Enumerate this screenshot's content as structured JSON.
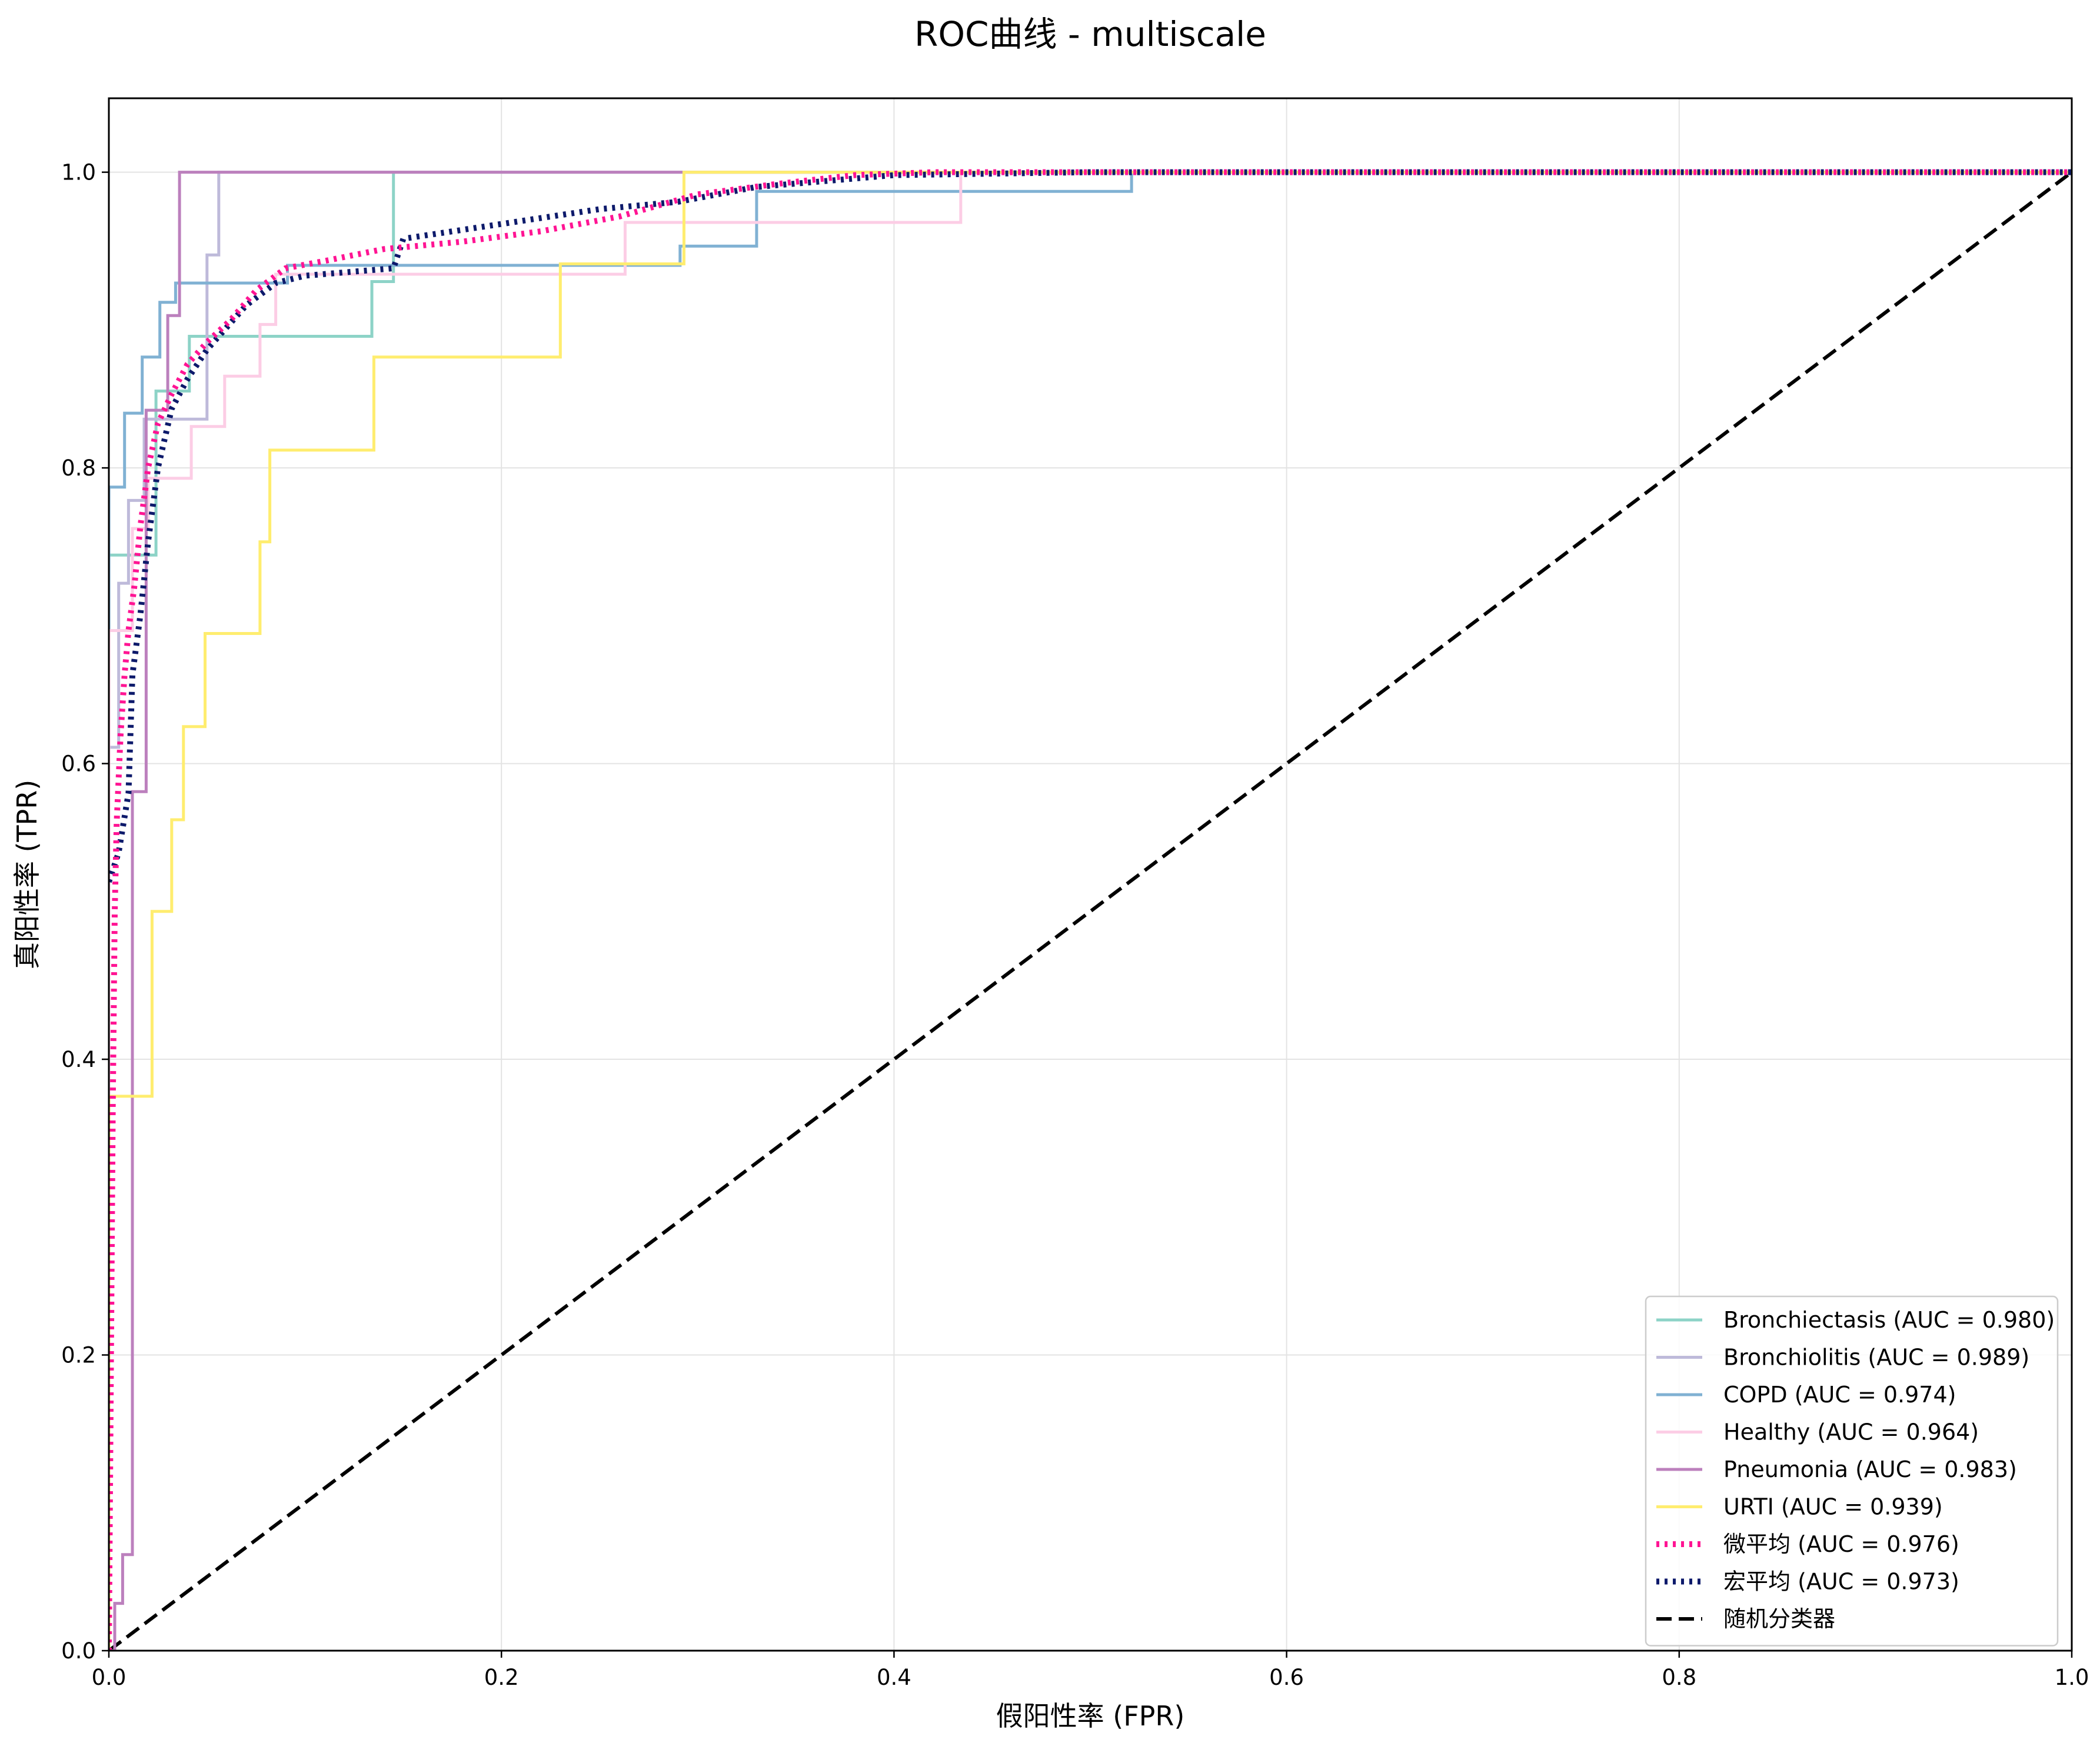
{
  "chart_data": {
    "type": "line",
    "title": "ROC曲线 - multiscale",
    "xlabel": "假阳性率 (FPR)",
    "ylabel": "真阳性率 (TPR)",
    "xlim": [
      0,
      1
    ],
    "ylim": [
      0,
      1.05
    ],
    "xticks": [
      "0.0",
      "0.2",
      "0.4",
      "0.6",
      "0.8",
      "1.0"
    ],
    "yticks": [
      "0.0",
      "0.2",
      "0.4",
      "0.6",
      "0.8",
      "1.0"
    ],
    "grid": true,
    "legend_position": "lower-right",
    "series": [
      {
        "name": "Bronchiectasis (AUC = 0.980)",
        "color": "#8dd3c7",
        "style": "solid",
        "points": [
          [
            0,
            0
          ],
          [
            0,
            0.741
          ],
          [
            0.024,
            0.741
          ],
          [
            0.024,
            0.852
          ],
          [
            0.041,
            0.852
          ],
          [
            0.041,
            0.889
          ],
          [
            0.134,
            0.889
          ],
          [
            0.134,
            0.926
          ],
          [
            0.145,
            0.926
          ],
          [
            0.145,
            1.0
          ],
          [
            1.0,
            1.0
          ]
        ]
      },
      {
        "name": "Bronchiolitis (AUC = 0.989)",
        "color": "#bebada",
        "style": "solid",
        "points": [
          [
            0,
            0
          ],
          [
            0,
            0.611
          ],
          [
            0.005,
            0.611
          ],
          [
            0.005,
            0.722
          ],
          [
            0.01,
            0.722
          ],
          [
            0.01,
            0.778
          ],
          [
            0.018,
            0.778
          ],
          [
            0.018,
            0.833
          ],
          [
            0.05,
            0.833
          ],
          [
            0.05,
            0.944
          ],
          [
            0.056,
            0.944
          ],
          [
            0.056,
            1.0
          ],
          [
            1.0,
            1.0
          ]
        ]
      },
      {
        "name": "COPD (AUC = 0.974)",
        "color": "#80b1d3",
        "style": "solid",
        "points": [
          [
            0,
            0
          ],
          [
            0,
            0.787
          ],
          [
            0.008,
            0.787
          ],
          [
            0.008,
            0.837
          ],
          [
            0.017,
            0.837
          ],
          [
            0.017,
            0.875
          ],
          [
            0.026,
            0.875
          ],
          [
            0.026,
            0.912
          ],
          [
            0.034,
            0.912
          ],
          [
            0.034,
            0.925
          ],
          [
            0.091,
            0.925
          ],
          [
            0.091,
            0.937
          ],
          [
            0.291,
            0.937
          ],
          [
            0.291,
            0.95
          ],
          [
            0.33,
            0.95
          ],
          [
            0.33,
            0.987
          ],
          [
            0.521,
            0.987
          ],
          [
            0.521,
            1.0
          ],
          [
            1.0,
            1.0
          ]
        ]
      },
      {
        "name": "Healthy (AUC = 0.964)",
        "color": "#fccde5",
        "style": "solid",
        "points": [
          [
            0,
            0
          ],
          [
            0,
            0.69
          ],
          [
            0.012,
            0.69
          ],
          [
            0.012,
            0.759
          ],
          [
            0.02,
            0.759
          ],
          [
            0.02,
            0.793
          ],
          [
            0.042,
            0.793
          ],
          [
            0.042,
            0.828
          ],
          [
            0.059,
            0.828
          ],
          [
            0.059,
            0.862
          ],
          [
            0.077,
            0.862
          ],
          [
            0.077,
            0.897
          ],
          [
            0.085,
            0.897
          ],
          [
            0.085,
            0.931
          ],
          [
            0.263,
            0.931
          ],
          [
            0.263,
            0.966
          ],
          [
            0.434,
            0.966
          ],
          [
            0.434,
            1.0
          ],
          [
            1.0,
            1.0
          ]
        ]
      },
      {
        "name": "Pneumonia (AUC = 0.983)",
        "color": "#bc80bd",
        "style": "solid",
        "points": [
          [
            0,
            0
          ],
          [
            0.003,
            0
          ],
          [
            0.003,
            0.032
          ],
          [
            0.007,
            0.032
          ],
          [
            0.007,
            0.065
          ],
          [
            0.012,
            0.065
          ],
          [
            0.012,
            0.581
          ],
          [
            0.019,
            0.581
          ],
          [
            0.019,
            0.839
          ],
          [
            0.03,
            0.839
          ],
          [
            0.03,
            0.903
          ],
          [
            0.036,
            0.903
          ],
          [
            0.036,
            1.0
          ],
          [
            1.0,
            1.0
          ]
        ]
      },
      {
        "name": "URTI (AUC = 0.939)",
        "color": "#ffed6f",
        "style": "solid",
        "points": [
          [
            0,
            0
          ],
          [
            0,
            0.375
          ],
          [
            0.022,
            0.375
          ],
          [
            0.022,
            0.5
          ],
          [
            0.032,
            0.5
          ],
          [
            0.032,
            0.562
          ],
          [
            0.038,
            0.562
          ],
          [
            0.038,
            0.625
          ],
          [
            0.049,
            0.625
          ],
          [
            0.049,
            0.688
          ],
          [
            0.077,
            0.688
          ],
          [
            0.077,
            0.75
          ],
          [
            0.082,
            0.75
          ],
          [
            0.082,
            0.812
          ],
          [
            0.135,
            0.812
          ],
          [
            0.135,
            0.875
          ],
          [
            0.23,
            0.875
          ],
          [
            0.23,
            0.938
          ],
          [
            0.293,
            0.938
          ],
          [
            0.293,
            1.0
          ],
          [
            1.0,
            1.0
          ]
        ]
      },
      {
        "name": "微平均 (AUC = 0.976)",
        "color": "#ff1493",
        "style": "dotted",
        "points": [
          [
            0,
            0
          ],
          [
            0.002,
            0.37
          ],
          [
            0.003,
            0.5
          ],
          [
            0.004,
            0.56
          ],
          [
            0.006,
            0.62
          ],
          [
            0.008,
            0.66
          ],
          [
            0.01,
            0.69
          ],
          [
            0.013,
            0.72
          ],
          [
            0.016,
            0.76
          ],
          [
            0.02,
            0.8
          ],
          [
            0.025,
            0.83
          ],
          [
            0.032,
            0.85
          ],
          [
            0.04,
            0.87
          ],
          [
            0.05,
            0.885
          ],
          [
            0.062,
            0.9
          ],
          [
            0.075,
            0.92
          ],
          [
            0.09,
            0.935
          ],
          [
            0.11,
            0.94
          ],
          [
            0.14,
            0.948
          ],
          [
            0.18,
            0.953
          ],
          [
            0.22,
            0.96
          ],
          [
            0.26,
            0.97
          ],
          [
            0.3,
            0.985
          ],
          [
            0.34,
            0.992
          ],
          [
            0.38,
            0.998
          ],
          [
            0.42,
            1.0
          ],
          [
            1.0,
            1.0
          ]
        ]
      },
      {
        "name": "宏平均 (AUC = 0.973)",
        "color": "#0d1a6b",
        "style": "dotted",
        "points": [
          [
            0,
            0.52
          ],
          [
            0.005,
            0.54
          ],
          [
            0.01,
            0.58
          ],
          [
            0.012,
            0.66
          ],
          [
            0.016,
            0.7
          ],
          [
            0.02,
            0.75
          ],
          [
            0.025,
            0.8
          ],
          [
            0.032,
            0.84
          ],
          [
            0.04,
            0.86
          ],
          [
            0.05,
            0.88
          ],
          [
            0.06,
            0.895
          ],
          [
            0.07,
            0.91
          ],
          [
            0.085,
            0.925
          ],
          [
            0.1,
            0.93
          ],
          [
            0.145,
            0.935
          ],
          [
            0.15,
            0.955
          ],
          [
            0.2,
            0.965
          ],
          [
            0.25,
            0.975
          ],
          [
            0.29,
            0.98
          ],
          [
            0.33,
            0.99
          ],
          [
            0.4,
            0.998
          ],
          [
            0.5,
            1.0
          ],
          [
            1.0,
            1.0
          ]
        ]
      },
      {
        "name": "随机分类器",
        "color": "#000000",
        "style": "dashed",
        "points": [
          [
            0,
            0
          ],
          [
            1,
            1
          ]
        ]
      }
    ]
  }
}
